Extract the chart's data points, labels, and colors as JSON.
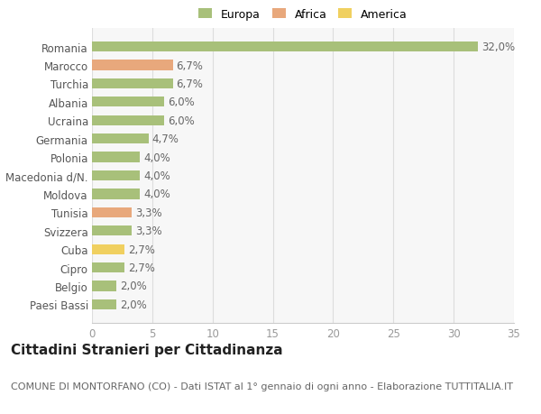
{
  "categories": [
    "Paesi Bassi",
    "Belgio",
    "Cipro",
    "Cuba",
    "Svizzera",
    "Tunisia",
    "Moldova",
    "Macedonia d/N.",
    "Polonia",
    "Germania",
    "Ucraina",
    "Albania",
    "Turchia",
    "Marocco",
    "Romania"
  ],
  "values": [
    2.0,
    2.0,
    2.7,
    2.7,
    3.3,
    3.3,
    4.0,
    4.0,
    4.0,
    4.7,
    6.0,
    6.0,
    6.7,
    6.7,
    32.0
  ],
  "labels": [
    "2,0%",
    "2,0%",
    "2,7%",
    "2,7%",
    "3,3%",
    "3,3%",
    "4,0%",
    "4,0%",
    "4,0%",
    "4,7%",
    "6,0%",
    "6,0%",
    "6,7%",
    "6,7%",
    "32,0%"
  ],
  "continent": [
    "Europa",
    "Europa",
    "Europa",
    "America",
    "Europa",
    "Africa",
    "Europa",
    "Europa",
    "Europa",
    "Europa",
    "Europa",
    "Europa",
    "Europa",
    "Africa",
    "Europa"
  ],
  "colors": {
    "Europa": "#a8c07a",
    "Africa": "#e8a87c",
    "America": "#f0d060"
  },
  "legend_order": [
    "Europa",
    "Africa",
    "America"
  ],
  "title": "Cittadini Stranieri per Cittadinanza",
  "subtitle": "COMUNE DI MONTORFANO (CO) - Dati ISTAT al 1° gennaio di ogni anno - Elaborazione TUTTITALIA.IT",
  "xlim": [
    0,
    35
  ],
  "xticks": [
    0,
    5,
    10,
    15,
    20,
    25,
    30,
    35
  ],
  "background_color": "#ffffff",
  "plot_bg_color": "#f7f7f7",
  "grid_color": "#dddddd",
  "bar_height": 0.55,
  "label_fontsize": 8.5,
  "tick_fontsize": 8.5,
  "ytick_fontsize": 8.5,
  "title_fontsize": 11,
  "subtitle_fontsize": 8,
  "legend_fontsize": 9
}
